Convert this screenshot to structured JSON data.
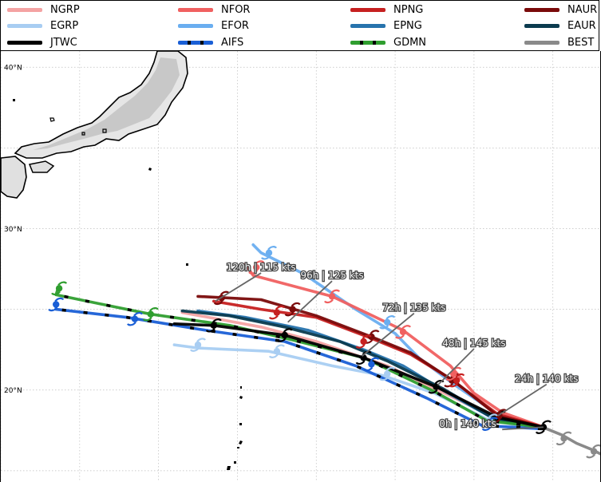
{
  "legend": {
    "items": [
      {
        "label": "NGRP",
        "color": "#f4a3a3"
      },
      {
        "label": "NFOR",
        "color": "#f06060"
      },
      {
        "label": "NPNG",
        "color": "#c62020"
      },
      {
        "label": "NAUR",
        "color": "#7a0a0a"
      },
      {
        "label": "EGRP",
        "color": "#a8cdf2"
      },
      {
        "label": "EFOR",
        "color": "#6aaef0"
      },
      {
        "label": "EPNG",
        "color": "#2773ad"
      },
      {
        "label": "EAUR",
        "color": "#0b3b4f"
      },
      {
        "label": "JTWC",
        "color": "#000000"
      },
      {
        "label": "AIFS",
        "color": "#1a5fd6"
      },
      {
        "label": "GDMN",
        "color": "#2f9e2f"
      },
      {
        "label": "BEST",
        "color": "#8a8a8a"
      }
    ]
  },
  "chart_data": {
    "type": "line",
    "title": "",
    "xlabel": "",
    "ylabel": "",
    "lat_ticks": [
      "40°N",
      "30°N",
      "20°N"
    ],
    "ylim": [
      14.3,
      41.0
    ],
    "xlim": [
      120.0,
      158.0
    ],
    "grid": true,
    "legend_position": "top",
    "series": [
      {
        "name": "BEST",
        "color": "#8a8a8a",
        "points": [
          [
            158.5,
            15.8
          ],
          [
            157.5,
            16.3
          ],
          [
            156.5,
            16.7
          ],
          [
            155.6,
            17.2
          ],
          [
            154.6,
            17.6
          ]
        ]
      },
      {
        "name": "NGRP",
        "color": "#f4a3a3",
        "points": [
          [
            154.3,
            17.7
          ],
          [
            151.5,
            18.2
          ],
          [
            149.0,
            19.4
          ],
          [
            144.5,
            21.5
          ],
          [
            140.0,
            23.0
          ],
          [
            136.5,
            23.9
          ],
          [
            131.5,
            24.8
          ]
        ]
      },
      {
        "name": "NFOR",
        "color": "#f06060",
        "points": [
          [
            154.4,
            17.7
          ],
          [
            151.8,
            18.6
          ],
          [
            150.0,
            19.8
          ],
          [
            148.5,
            21.5
          ],
          [
            145.5,
            23.7
          ],
          [
            141.0,
            25.8
          ],
          [
            136.0,
            27.1
          ],
          [
            135.5,
            27.8
          ]
        ]
      },
      {
        "name": "NPNG",
        "color": "#c62020",
        "points": [
          [
            154.4,
            17.7
          ],
          [
            151.5,
            18.5
          ],
          [
            148.5,
            20.7
          ],
          [
            146.0,
            22.2
          ],
          [
            143.5,
            23.2
          ],
          [
            140.0,
            24.5
          ],
          [
            136.5,
            25.0
          ],
          [
            133.5,
            25.5
          ]
        ]
      },
      {
        "name": "NAUR",
        "color": "#7a0a0a",
        "points": [
          [
            154.4,
            17.7
          ],
          [
            151.5,
            18.4
          ],
          [
            148.8,
            20.5
          ],
          [
            146.0,
            22.3
          ],
          [
            143.5,
            23.3
          ],
          [
            140.0,
            24.6
          ],
          [
            136.5,
            25.6
          ],
          [
            132.5,
            25.8
          ]
        ]
      },
      {
        "name": "EGRP",
        "color": "#a8cdf2",
        "points": [
          [
            154.2,
            17.6
          ],
          [
            151.0,
            18.1
          ],
          [
            147.5,
            19.8
          ],
          [
            144.2,
            20.9
          ],
          [
            141.0,
            21.5
          ],
          [
            137.0,
            22.4
          ],
          [
            132.5,
            22.6
          ],
          [
            131.0,
            22.8
          ]
        ]
      },
      {
        "name": "EFOR",
        "color": "#6aaef0",
        "points": [
          [
            154.3,
            17.7
          ],
          [
            151.5,
            18.5
          ],
          [
            148.8,
            20.3
          ],
          [
            146.5,
            22.0
          ],
          [
            145.0,
            23.5
          ],
          [
            142.5,
            25.0
          ],
          [
            139.2,
            27.2
          ],
          [
            136.5,
            28.5
          ],
          [
            136.0,
            29.0
          ]
        ]
      },
      {
        "name": "EPNG",
        "color": "#2773ad",
        "points": [
          [
            154.3,
            17.7
          ],
          [
            151.3,
            18.2
          ],
          [
            148.0,
            20.0
          ],
          [
            145.5,
            21.5
          ],
          [
            143.0,
            22.5
          ],
          [
            139.5,
            23.7
          ],
          [
            135.5,
            24.5
          ],
          [
            132.5,
            24.9
          ]
        ]
      },
      {
        "name": "EAUR",
        "color": "#0b3b4f",
        "points": [
          [
            154.3,
            17.7
          ],
          [
            151.3,
            18.2
          ],
          [
            148.0,
            20.1
          ],
          [
            144.5,
            21.8
          ],
          [
            141.5,
            23.0
          ],
          [
            138.0,
            23.9
          ],
          [
            134.5,
            24.6
          ],
          [
            131.5,
            24.9
          ]
        ]
      },
      {
        "name": "JTWC",
        "color": "#000000",
        "points": [
          [
            154.4,
            17.7
          ],
          [
            151.5,
            18.3
          ],
          [
            147.6,
            20.2
          ],
          [
            143.0,
            22.0
          ],
          [
            138.0,
            23.4
          ],
          [
            133.5,
            24.0
          ],
          [
            131.0,
            24.1
          ]
        ]
      },
      {
        "name": "AIFS",
        "color": "#1a5fd6",
        "points": [
          [
            154.3,
            17.6
          ],
          [
            150.5,
            17.8
          ],
          [
            147.0,
            19.5
          ],
          [
            142.5,
            21.5
          ],
          [
            138.0,
            23.0
          ],
          [
            133.0,
            23.7
          ],
          [
            128.0,
            24.5
          ],
          [
            123.5,
            25.0
          ],
          [
            123.5,
            25.2
          ]
        ]
      },
      {
        "name": "GDMN",
        "color": "#2f9e2f",
        "points": [
          [
            154.3,
            17.7
          ],
          [
            150.8,
            18.1
          ],
          [
            147.5,
            19.9
          ],
          [
            143.0,
            22.0
          ],
          [
            138.5,
            23.1
          ],
          [
            134.5,
            24.0
          ],
          [
            129.5,
            24.7
          ],
          [
            127.0,
            25.2
          ],
          [
            123.5,
            25.9
          ],
          [
            123.6,
            26.2
          ]
        ]
      }
    ],
    "annotations": [
      {
        "text": "0h | 140 kts",
        "at": [
          154.4,
          17.7
        ],
        "label_at": [
          149.6,
          17.7
        ]
      },
      {
        "text": "24h | 140 kts",
        "at": [
          151.5,
          18.4
        ],
        "label_at": [
          154.6,
          20.5
        ]
      },
      {
        "text": "48h | 145 kts",
        "at": [
          147.7,
          20.3
        ],
        "label_at": [
          150.0,
          22.7
        ]
      },
      {
        "text": "72h | 135 kts",
        "at": [
          142.9,
          22.1
        ],
        "label_at": [
          146.2,
          24.9
        ]
      },
      {
        "text": "96h | 125 kts",
        "at": [
          138.2,
          24.2
        ],
        "label_at": [
          141.0,
          26.9
        ]
      },
      {
        "text": "120h | 115 kts",
        "at": [
          133.6,
          25.5
        ],
        "label_at": [
          136.5,
          27.4
        ]
      }
    ],
    "markers": [
      {
        "series": "JTWC",
        "points": [
          [
            154.4,
            17.7
          ],
          [
            151.5,
            18.3
          ],
          [
            147.6,
            20.2
          ],
          [
            143.0,
            22.0
          ],
          [
            138.0,
            23.4
          ],
          [
            133.5,
            24.0
          ]
        ]
      },
      {
        "series": "NAUR",
        "points": [
          [
            151.6,
            18.4
          ],
          [
            148.6,
            20.6
          ],
          [
            143.5,
            23.3
          ],
          [
            138.5,
            25.0
          ],
          [
            134.0,
            25.7
          ]
        ]
      },
      {
        "series": "NPNG",
        "points": [
          [
            148.9,
            20.6
          ],
          [
            143.0,
            23.0
          ],
          [
            137.5,
            24.8
          ]
        ]
      },
      {
        "series": "NFOR",
        "points": [
          [
            148.7,
            21.0
          ],
          [
            145.5,
            23.6
          ],
          [
            141.0,
            25.8
          ],
          [
            136.2,
            27.6
          ]
        ]
      },
      {
        "series": "EFOR",
        "points": [
          [
            144.5,
            24.2
          ],
          [
            137.0,
            28.5
          ]
        ]
      },
      {
        "series": "EGRP",
        "points": [
          [
            151.0,
            18.1
          ],
          [
            144.5,
            21.0
          ],
          [
            137.5,
            22.4
          ],
          [
            132.5,
            22.8
          ]
        ]
      },
      {
        "series": "AIFS",
        "points": [
          [
            151.0,
            17.9
          ],
          [
            143.5,
            21.6
          ],
          [
            128.5,
            24.4
          ],
          [
            123.5,
            25.3
          ]
        ]
      },
      {
        "series": "GDMN",
        "points": [
          [
            129.5,
            24.7
          ],
          [
            123.7,
            26.3
          ]
        ]
      },
      {
        "series": "BEST",
        "points": [
          [
            157.6,
            16.2
          ],
          [
            155.7,
            17.0
          ]
        ]
      }
    ]
  }
}
